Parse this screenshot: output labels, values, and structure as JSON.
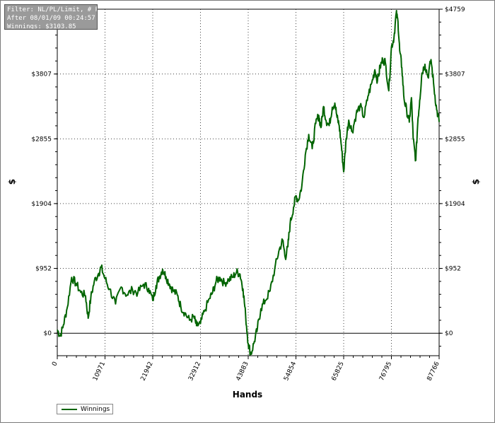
{
  "info_box": {
    "line1": "Filter: NL/PL/Limit, # Players",
    "line2": "After 08/01/09 00:24:57",
    "line3": "Winnings: $3103.85"
  },
  "legend": {
    "label": "Winnings",
    "color": "#006400"
  },
  "chart_data": {
    "type": "line",
    "title": "",
    "xlabel": "Hands",
    "ylabel_left": "$",
    "ylabel_right": "$",
    "xlim": [
      0,
      87766
    ],
    "ylim": [
      -330,
      4759
    ],
    "x_ticks": [
      "0",
      "10971",
      "21942",
      "32912",
      "43883",
      "54854",
      "65825",
      "76795",
      "87766"
    ],
    "x_tick_values": [
      0,
      10971,
      21942,
      32912,
      43883,
      54854,
      65825,
      76795,
      87766
    ],
    "y_ticks": [
      "$0",
      "$952",
      "$1904",
      "$2855",
      "$3807",
      "$4759"
    ],
    "y_tick_values": [
      0,
      952,
      1904,
      2855,
      3807,
      4759
    ],
    "grid": true,
    "legend_position": "bottom-left",
    "series": [
      {
        "name": "Winnings",
        "color": "#006400",
        "x": [
          0,
          700,
          1400,
          2300,
          3300,
          4300,
          5400,
          6500,
          7100,
          7700,
          8500,
          9500,
          10100,
          10971,
          12000,
          13400,
          14700,
          16000,
          17300,
          18500,
          19800,
          21000,
          21942,
          22700,
          23400,
          24200,
          25000,
          25800,
          26600,
          27600,
          28400,
          29300,
          30400,
          31400,
          32000,
          32912,
          33800,
          35000,
          35700,
          36500,
          37400,
          38400,
          39400,
          40300,
          41200,
          42000,
          42700,
          43300,
          43883,
          44500,
          45300,
          46000,
          46800,
          47800,
          48900,
          50000,
          50900,
          51800,
          52400,
          53000,
          53500,
          54300,
          54854,
          55400,
          56200,
          57000,
          57800,
          58600,
          59400,
          60100,
          60600,
          61200,
          61800,
          62500,
          63200,
          63800,
          64300,
          64800,
          65300,
          65825,
          66400,
          67000,
          67800,
          68700,
          69600,
          70500,
          71400,
          72300,
          73000,
          73600,
          74200,
          74800,
          75400,
          76200,
          76795,
          77400,
          77900,
          78300,
          78700,
          79200,
          79700,
          80300,
          80900,
          81400,
          81800,
          82400,
          82900,
          83300,
          83800,
          84500,
          85200,
          85900,
          86600,
          87200,
          87766
        ],
        "y": [
          50,
          -40,
          120,
          380,
          820,
          730,
          600,
          550,
          220,
          520,
          760,
          880,
          970,
          800,
          650,
          430,
          680,
          560,
          640,
          590,
          720,
          660,
          480,
          700,
          820,
          940,
          830,
          720,
          630,
          560,
          390,
          300,
          190,
          240,
          110,
          140,
          320,
          510,
          600,
          760,
          820,
          730,
          790,
          820,
          900,
          870,
          650,
          250,
          -150,
          -310,
          -120,
          70,
          360,
          480,
          620,
          950,
          1200,
          1370,
          1110,
          1270,
          1600,
          1850,
          2020,
          1950,
          2160,
          2620,
          2920,
          2710,
          3080,
          3200,
          3020,
          3330,
          3120,
          3050,
          3320,
          3380,
          3170,
          3050,
          2750,
          2370,
          2860,
          3130,
          2960,
          3220,
          3340,
          3170,
          3480,
          3680,
          3870,
          3710,
          3910,
          4020,
          3980,
          3560,
          4200,
          4350,
          4700,
          4580,
          4150,
          3900,
          3440,
          3270,
          3100,
          3460,
          2850,
          2540,
          3150,
          3420,
          3820,
          3950,
          3760,
          4020,
          3600,
          3280,
          3104
        ]
      }
    ]
  }
}
